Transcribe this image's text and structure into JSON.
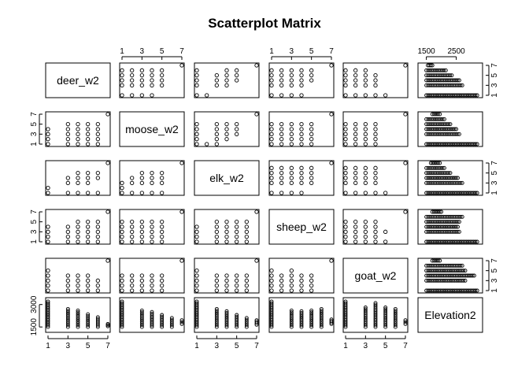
{
  "chart_data": {
    "type": "scatter",
    "title": "Scatterplot Matrix",
    "variables": [
      "deer_w2",
      "moose_w2",
      "elk_w2",
      "sheep_w2",
      "goat_w2",
      "Elevation2"
    ],
    "ranges": {
      "deer_w2": [
        1,
        7
      ],
      "moose_w2": [
        1,
        7
      ],
      "elk_w2": [
        1,
        7
      ],
      "sheep_w2": [
        1,
        7
      ],
      "goat_w2": [
        1,
        7
      ],
      "Elevation2": [
        1300,
        3300
      ]
    },
    "tick_labels": {
      "top_cols": {
        "1": [
          "1",
          "3",
          "5",
          "7"
        ],
        "3": [
          "1",
          "3",
          "5",
          "7"
        ],
        "5": [
          "1500",
          "2500"
        ]
      },
      "right_rows": {
        "0": [
          "1",
          "3",
          "5",
          "7"
        ],
        "2": [
          "1",
          "3",
          "5",
          "7"
        ],
        "4": [
          "1",
          "3",
          "5",
          "7"
        ]
      },
      "bottom_cols": {
        "0": [
          "1",
          "3",
          "5",
          "7"
        ],
        "2": [
          "1",
          "3",
          "5",
          "7"
        ],
        "4": [
          "1",
          "3",
          "5",
          "7"
        ]
      },
      "left_rows": {
        "1": [
          "1",
          "3",
          "5",
          "7"
        ],
        "3": [
          "1",
          "3",
          "5",
          "7"
        ],
        "5": [
          "1500",
          "3000"
        ]
      }
    },
    "pair_points": {
      "deer_w2|moose_w2": [
        [
          1,
          1
        ],
        [
          1,
          2
        ],
        [
          1,
          3
        ],
        [
          1,
          4
        ],
        [
          3,
          1
        ],
        [
          3,
          2
        ],
        [
          3,
          3
        ],
        [
          3,
          4
        ],
        [
          3,
          5
        ],
        [
          4,
          1
        ],
        [
          4,
          2
        ],
        [
          4,
          3
        ],
        [
          4,
          4
        ],
        [
          4,
          5
        ],
        [
          5,
          1
        ],
        [
          5,
          2
        ],
        [
          5,
          3
        ],
        [
          5,
          4
        ],
        [
          5,
          5
        ],
        [
          6,
          1
        ],
        [
          6,
          2
        ],
        [
          6,
          3
        ],
        [
          6,
          4
        ],
        [
          6,
          5
        ],
        [
          7,
          7
        ]
      ],
      "deer_w2|elk_w2": [
        [
          1,
          1
        ],
        [
          1,
          2
        ],
        [
          3,
          1
        ],
        [
          3,
          3
        ],
        [
          3,
          4
        ],
        [
          4,
          1
        ],
        [
          4,
          3
        ],
        [
          4,
          4
        ],
        [
          4,
          5
        ],
        [
          5,
          1
        ],
        [
          5,
          3
        ],
        [
          5,
          4
        ],
        [
          5,
          5
        ],
        [
          6,
          1
        ],
        [
          6,
          4
        ],
        [
          6,
          5
        ],
        [
          7,
          7
        ]
      ],
      "deer_w2|sheep_w2": [
        [
          1,
          1
        ],
        [
          1,
          2
        ],
        [
          1,
          3
        ],
        [
          1,
          4
        ],
        [
          3,
          1
        ],
        [
          3,
          2
        ],
        [
          3,
          3
        ],
        [
          3,
          4
        ],
        [
          4,
          1
        ],
        [
          4,
          2
        ],
        [
          4,
          3
        ],
        [
          4,
          4
        ],
        [
          4,
          5
        ],
        [
          5,
          1
        ],
        [
          5,
          2
        ],
        [
          5,
          3
        ],
        [
          5,
          4
        ],
        [
          5,
          5
        ],
        [
          6,
          1
        ],
        [
          6,
          2
        ],
        [
          6,
          3
        ],
        [
          6,
          4
        ],
        [
          6,
          5
        ],
        [
          7,
          7
        ]
      ],
      "deer_w2|goat_w2": [
        [
          1,
          1
        ],
        [
          1,
          2
        ],
        [
          1,
          3
        ],
        [
          1,
          4
        ],
        [
          1,
          5
        ],
        [
          3,
          1
        ],
        [
          3,
          2
        ],
        [
          3,
          3
        ],
        [
          3,
          4
        ],
        [
          4,
          1
        ],
        [
          4,
          2
        ],
        [
          4,
          3
        ],
        [
          4,
          4
        ],
        [
          5,
          1
        ],
        [
          5,
          2
        ],
        [
          5,
          3
        ],
        [
          5,
          4
        ],
        [
          6,
          1
        ],
        [
          6,
          2
        ],
        [
          6,
          3
        ],
        [
          7,
          7
        ]
      ],
      "moose_w2|elk_w2": [
        [
          1,
          1
        ],
        [
          1,
          2
        ],
        [
          1,
          3
        ],
        [
          2,
          1
        ],
        [
          2,
          3
        ],
        [
          2,
          4
        ],
        [
          3,
          1
        ],
        [
          3,
          3
        ],
        [
          3,
          4
        ],
        [
          3,
          5
        ],
        [
          4,
          1
        ],
        [
          4,
          3
        ],
        [
          4,
          4
        ],
        [
          4,
          5
        ],
        [
          5,
          1
        ],
        [
          5,
          3
        ],
        [
          5,
          4
        ],
        [
          5,
          5
        ],
        [
          7,
          7
        ]
      ],
      "moose_w2|sheep_w2": [
        [
          1,
          1
        ],
        [
          1,
          2
        ],
        [
          1,
          3
        ],
        [
          1,
          4
        ],
        [
          1,
          5
        ],
        [
          2,
          1
        ],
        [
          2,
          2
        ],
        [
          2,
          3
        ],
        [
          2,
          4
        ],
        [
          2,
          5
        ],
        [
          3,
          1
        ],
        [
          3,
          2
        ],
        [
          3,
          3
        ],
        [
          3,
          4
        ],
        [
          3,
          5
        ],
        [
          4,
          1
        ],
        [
          4,
          2
        ],
        [
          4,
          3
        ],
        [
          4,
          4
        ],
        [
          4,
          5
        ],
        [
          5,
          1
        ],
        [
          5,
          2
        ],
        [
          5,
          3
        ],
        [
          5,
          4
        ],
        [
          5,
          5
        ],
        [
          7,
          7
        ]
      ],
      "moose_w2|goat_w2": [
        [
          1,
          1
        ],
        [
          1,
          2
        ],
        [
          1,
          3
        ],
        [
          1,
          4
        ],
        [
          2,
          1
        ],
        [
          2,
          2
        ],
        [
          2,
          3
        ],
        [
          2,
          4
        ],
        [
          3,
          1
        ],
        [
          3,
          2
        ],
        [
          3,
          3
        ],
        [
          3,
          4
        ],
        [
          4,
          1
        ],
        [
          4,
          2
        ],
        [
          4,
          3
        ],
        [
          4,
          4
        ],
        [
          5,
          1
        ],
        [
          5,
          2
        ],
        [
          5,
          3
        ],
        [
          5,
          4
        ],
        [
          7,
          7
        ]
      ],
      "elk_w2|sheep_w2": [
        [
          1,
          1
        ],
        [
          1,
          2
        ],
        [
          1,
          3
        ],
        [
          1,
          4
        ],
        [
          3,
          1
        ],
        [
          3,
          2
        ],
        [
          3,
          3
        ],
        [
          3,
          4
        ],
        [
          3,
          5
        ],
        [
          4,
          1
        ],
        [
          4,
          2
        ],
        [
          4,
          3
        ],
        [
          4,
          4
        ],
        [
          4,
          5
        ],
        [
          5,
          1
        ],
        [
          5,
          2
        ],
        [
          5,
          3
        ],
        [
          5,
          4
        ],
        [
          5,
          5
        ],
        [
          6,
          1
        ],
        [
          6,
          2
        ],
        [
          6,
          3
        ],
        [
          6,
          4
        ],
        [
          6,
          5
        ],
        [
          7,
          7
        ]
      ],
      "elk_w2|goat_w2": [
        [
          1,
          1
        ],
        [
          1,
          2
        ],
        [
          1,
          3
        ],
        [
          1,
          4
        ],
        [
          1,
          5
        ],
        [
          3,
          1
        ],
        [
          3,
          2
        ],
        [
          3,
          3
        ],
        [
          3,
          4
        ],
        [
          4,
          1
        ],
        [
          4,
          2
        ],
        [
          4,
          3
        ],
        [
          4,
          4
        ],
        [
          5,
          1
        ],
        [
          5,
          2
        ],
        [
          5,
          3
        ],
        [
          5,
          4
        ],
        [
          6,
          1
        ],
        [
          6,
          2
        ],
        [
          6,
          3
        ],
        [
          6,
          4
        ],
        [
          7,
          7
        ]
      ],
      "sheep_w2|goat_w2": [
        [
          1,
          1
        ],
        [
          1,
          2
        ],
        [
          1,
          3
        ],
        [
          1,
          4
        ],
        [
          1,
          5
        ],
        [
          2,
          1
        ],
        [
          2,
          2
        ],
        [
          2,
          3
        ],
        [
          2,
          4
        ],
        [
          3,
          1
        ],
        [
          3,
          2
        ],
        [
          3,
          3
        ],
        [
          3,
          4
        ],
        [
          3,
          5
        ],
        [
          4,
          1
        ],
        [
          4,
          2
        ],
        [
          4,
          3
        ],
        [
          4,
          4
        ],
        [
          5,
          1
        ],
        [
          5,
          2
        ],
        [
          5,
          3
        ],
        [
          5,
          4
        ],
        [
          7,
          7
        ]
      ]
    },
    "elevation_ranges": {
      "deer_w2": [
        [
          1,
          1500,
          3200
        ],
        [
          3,
          1500,
          2700
        ],
        [
          4,
          1500,
          2600
        ],
        [
          5,
          1500,
          2350
        ],
        [
          6,
          1500,
          2150
        ],
        [
          7,
          1550,
          1700
        ]
      ],
      "moose_w2": [
        [
          1,
          1500,
          3200
        ],
        [
          3,
          1500,
          2600
        ],
        [
          4,
          1500,
          2500
        ],
        [
          5,
          1500,
          2300
        ],
        [
          6,
          1500,
          2100
        ],
        [
          7,
          1700,
          1950
        ]
      ],
      "elk_w2": [
        [
          1,
          1500,
          3200
        ],
        [
          3,
          1500,
          2700
        ],
        [
          4,
          1500,
          2550
        ],
        [
          5,
          1500,
          2300
        ],
        [
          6,
          1500,
          2100
        ],
        [
          7,
          1650,
          1950
        ]
      ],
      "sheep_w2": [
        [
          1,
          1500,
          3200
        ],
        [
          3,
          1500,
          2600
        ],
        [
          4,
          1500,
          2550
        ],
        [
          5,
          1500,
          2600
        ],
        [
          6,
          1500,
          2700
        ],
        [
          7,
          1700,
          2000
        ]
      ],
      "goat_w2": [
        [
          1,
          1500,
          3200
        ],
        [
          3,
          1500,
          2800
        ],
        [
          4,
          1500,
          3100
        ],
        [
          5,
          1500,
          2800
        ],
        [
          6,
          1500,
          2700
        ],
        [
          7,
          1700,
          1950
        ]
      ]
    },
    "grid": false,
    "legend": "none"
  }
}
